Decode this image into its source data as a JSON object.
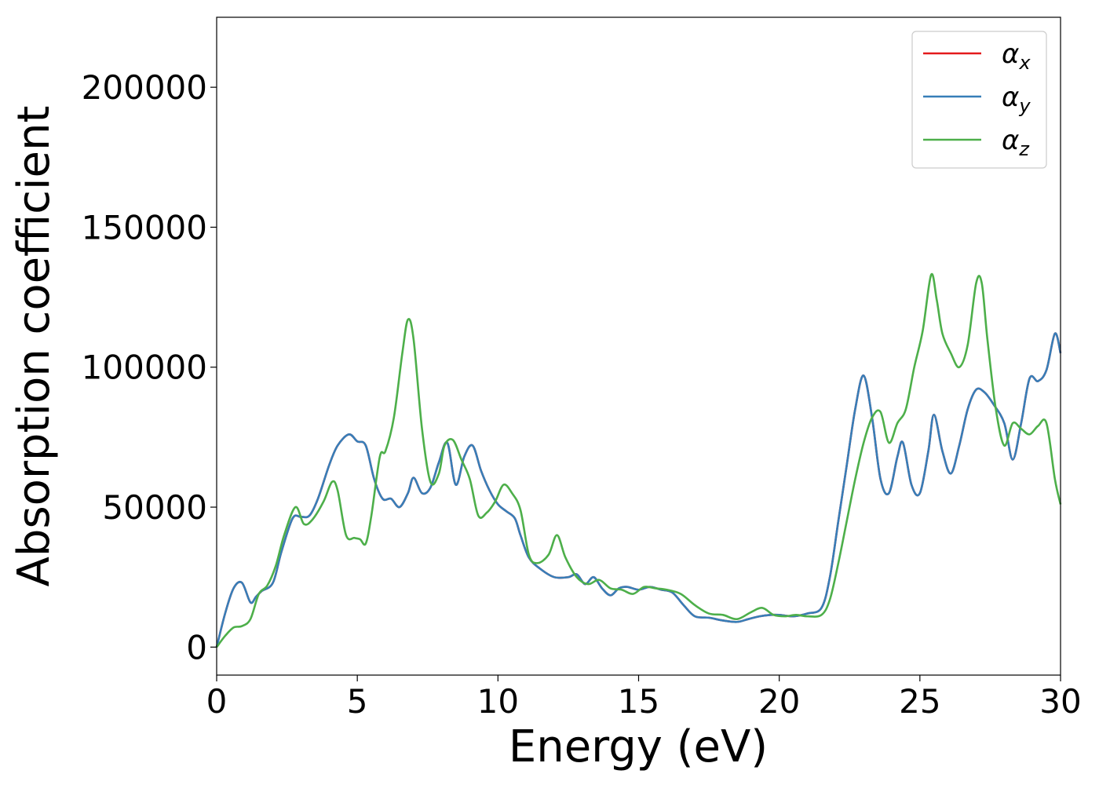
{
  "chart_data": {
    "type": "line",
    "title": "",
    "xlabel": "Energy (eV)",
    "ylabel": "Absorption coefficient",
    "xlim": [
      0,
      30
    ],
    "ylim": [
      -10000,
      225000
    ],
    "xticks": [
      0,
      5,
      10,
      15,
      20,
      25,
      30
    ],
    "yticks": [
      0,
      50000,
      100000,
      150000,
      200000
    ],
    "xtick_labels": [
      "0",
      "5",
      "10",
      "15",
      "20",
      "25",
      "30"
    ],
    "ytick_labels": [
      "0",
      "50000",
      "100000",
      "150000",
      "200000"
    ],
    "grid": false,
    "legend": {
      "placement": "top-right",
      "entries": [
        {
          "symbol": "α",
          "sub": "x",
          "color": "#e41a1c"
        },
        {
          "symbol": "α",
          "sub": "y",
          "color": "#377eb8"
        },
        {
          "symbol": "α",
          "sub": "z",
          "color": "#4daf4a"
        }
      ]
    },
    "series": [
      {
        "name": "αx",
        "color": "#e41a1c",
        "x": [
          0,
          0.3,
          0.6,
          0.9,
          1.2,
          1.4,
          1.6,
          2.0,
          2.3,
          2.7,
          3.0,
          3.3,
          3.6,
          4.0,
          4.3,
          4.7,
          5.0,
          5.3,
          5.6,
          5.9,
          6.2,
          6.5,
          6.8,
          7.0,
          7.3,
          7.6,
          7.9,
          8.2,
          8.5,
          8.8,
          9.1,
          9.4,
          9.7,
          10.0,
          10.3,
          10.6,
          10.8,
          11.1,
          11.5,
          12.0,
          12.5,
          12.8,
          13.1,
          13.4,
          13.7,
          14.0,
          14.3,
          14.6,
          15.0,
          15.4,
          15.8,
          16.2,
          16.6,
          17.0,
          17.5,
          18.0,
          18.5,
          18.9,
          19.3,
          19.7,
          20.0,
          20.5,
          21.0,
          21.5,
          21.8,
          22.1,
          22.4,
          22.7,
          23.0,
          23.3,
          23.6,
          23.9,
          24.2,
          24.4,
          24.7,
          25.0,
          25.3,
          25.5,
          25.8,
          26.1,
          26.4,
          26.7,
          27.0,
          27.3,
          27.6,
          28.0,
          28.3,
          28.6,
          28.9,
          29.2,
          29.5,
          29.8,
          30.0
        ],
        "y": [
          0,
          12000,
          21000,
          23000,
          16000,
          18000,
          20000,
          23000,
          34000,
          46000,
          46500,
          47000,
          53000,
          65000,
          72000,
          76000,
          73500,
          72000,
          60000,
          53000,
          53000,
          50000,
          55000,
          60500,
          55000,
          57000,
          66000,
          73000,
          58000,
          68000,
          72000,
          63000,
          56000,
          51000,
          48500,
          46000,
          40000,
          32000,
          28000,
          25000,
          25000,
          26000,
          22500,
          25000,
          21000,
          18500,
          21000,
          21500,
          20500,
          21500,
          20500,
          19500,
          15000,
          11000,
          10500,
          9500,
          9000,
          10000,
          11000,
          11500,
          11500,
          11000,
          12000,
          14000,
          25000,
          45000,
          65000,
          85000,
          97000,
          82000,
          60000,
          55000,
          68000,
          73000,
          58000,
          55000,
          70000,
          83000,
          70000,
          62000,
          72000,
          85000,
          92000,
          91000,
          87000,
          80000,
          67000,
          80000,
          96000,
          95000,
          99000,
          112000,
          105000
        ]
      },
      {
        "name": "αy",
        "color": "#377eb8",
        "x": [
          0,
          0.3,
          0.6,
          0.9,
          1.2,
          1.4,
          1.6,
          2.0,
          2.3,
          2.7,
          3.0,
          3.3,
          3.6,
          4.0,
          4.3,
          4.7,
          5.0,
          5.3,
          5.6,
          5.9,
          6.2,
          6.5,
          6.8,
          7.0,
          7.3,
          7.6,
          7.9,
          8.2,
          8.5,
          8.8,
          9.1,
          9.4,
          9.7,
          10.0,
          10.3,
          10.6,
          10.8,
          11.1,
          11.5,
          12.0,
          12.5,
          12.8,
          13.1,
          13.4,
          13.7,
          14.0,
          14.3,
          14.6,
          15.0,
          15.4,
          15.8,
          16.2,
          16.6,
          17.0,
          17.5,
          18.0,
          18.5,
          18.9,
          19.3,
          19.7,
          20.0,
          20.5,
          21.0,
          21.5,
          21.8,
          22.1,
          22.4,
          22.7,
          23.0,
          23.3,
          23.6,
          23.9,
          24.2,
          24.4,
          24.7,
          25.0,
          25.3,
          25.5,
          25.8,
          26.1,
          26.4,
          26.7,
          27.0,
          27.3,
          27.6,
          28.0,
          28.3,
          28.6,
          28.9,
          29.2,
          29.5,
          29.8,
          30.0
        ],
        "y": [
          0,
          12000,
          21000,
          23000,
          16000,
          18000,
          20000,
          23000,
          34000,
          46000,
          46500,
          47000,
          53000,
          65000,
          72000,
          76000,
          73500,
          72000,
          60000,
          53000,
          53000,
          50000,
          55000,
          60500,
          55000,
          57000,
          66000,
          73000,
          58000,
          68000,
          72000,
          63000,
          56000,
          51000,
          48500,
          46000,
          40000,
          32000,
          28000,
          25000,
          25000,
          26000,
          22500,
          25000,
          21000,
          18500,
          21000,
          21500,
          20500,
          21500,
          20500,
          19500,
          15000,
          11000,
          10500,
          9500,
          9000,
          10000,
          11000,
          11500,
          11500,
          11000,
          12000,
          14000,
          25000,
          45000,
          65000,
          85000,
          97000,
          82000,
          60000,
          55000,
          68000,
          73000,
          58000,
          55000,
          70000,
          83000,
          70000,
          62000,
          72000,
          85000,
          92000,
          91000,
          87000,
          80000,
          67000,
          80000,
          96000,
          95000,
          99000,
          112000,
          105000
        ]
      },
      {
        "name": "αz",
        "color": "#4daf4a",
        "x": [
          0,
          0.3,
          0.6,
          0.9,
          1.2,
          1.5,
          1.8,
          2.1,
          2.4,
          2.8,
          3.1,
          3.4,
          3.8,
          4.1,
          4.3,
          4.6,
          4.9,
          5.1,
          5.3,
          5.5,
          5.8,
          6.0,
          6.3,
          6.6,
          6.8,
          7.0,
          7.3,
          7.6,
          7.9,
          8.1,
          8.4,
          8.7,
          9.0,
          9.3,
          9.6,
          9.9,
          10.2,
          10.5,
          10.8,
          11.1,
          11.4,
          11.8,
          12.1,
          12.4,
          12.8,
          13.2,
          13.6,
          14.0,
          14.4,
          14.8,
          15.2,
          15.6,
          16.0,
          16.5,
          17.0,
          17.5,
          18.0,
          18.5,
          19.0,
          19.4,
          19.8,
          20.2,
          20.6,
          21.0,
          21.5,
          21.8,
          22.1,
          22.4,
          22.7,
          23.0,
          23.3,
          23.6,
          23.9,
          24.2,
          24.5,
          24.8,
          25.1,
          25.4,
          25.6,
          25.8,
          26.1,
          26.4,
          26.7,
          27.0,
          27.2,
          27.4,
          27.7,
          28.0,
          28.3,
          28.6,
          28.9,
          29.2,
          29.5,
          29.8,
          30.0
        ],
        "y": [
          0,
          4000,
          7000,
          7500,
          10000,
          19000,
          22000,
          29000,
          40000,
          50000,
          44000,
          45500,
          52000,
          59000,
          56000,
          40000,
          39000,
          38500,
          37000,
          47000,
          68000,
          70000,
          82000,
          105000,
          117000,
          110000,
          78000,
          59000,
          62000,
          72000,
          74000,
          67000,
          60000,
          47000,
          48000,
          52000,
          58000,
          55000,
          49000,
          33000,
          30000,
          33000,
          40000,
          32000,
          25000,
          22500,
          24000,
          21000,
          20500,
          19000,
          21500,
          21000,
          20500,
          19000,
          15000,
          12000,
          11500,
          10000,
          12500,
          14000,
          11500,
          11000,
          11500,
          11000,
          11500,
          17000,
          30000,
          45000,
          60000,
          73000,
          82000,
          84000,
          73000,
          80000,
          85000,
          100000,
          113000,
          133000,
          124000,
          112000,
          105000,
          100000,
          108000,
          130000,
          130000,
          110000,
          85000,
          72000,
          80000,
          78000,
          76000,
          79000,
          80000,
          60000,
          51000
        ]
      }
    ]
  }
}
